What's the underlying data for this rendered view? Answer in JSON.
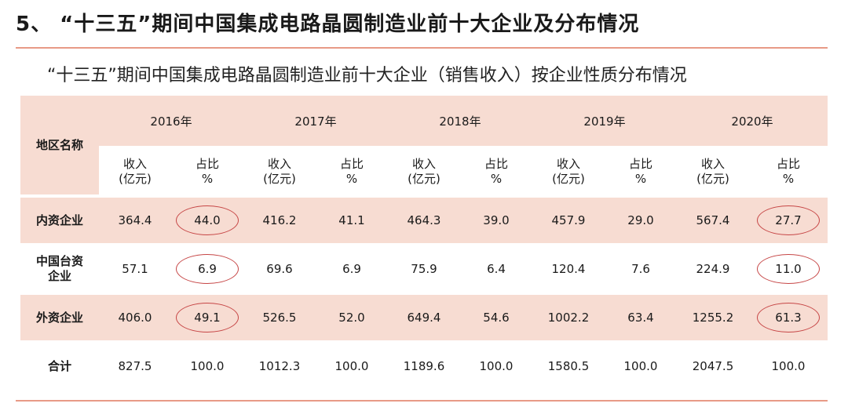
{
  "heading": "5、 “十三五”期间中国集成电路晶圆制造业前十大企业及分布情况",
  "subheading": "“十三五”期间中国集成电路晶圆制造业前十大企业（销售收入）按企业性质分布情况",
  "table": {
    "region_header": "地区名称",
    "years": [
      "2016年",
      "2017年",
      "2018年",
      "2019年",
      "2020年"
    ],
    "sub_headers": {
      "revenue": [
        "收入",
        "(亿元)"
      ],
      "share": [
        "占比",
        "%"
      ]
    },
    "rows": [
      {
        "name": [
          "内资企业"
        ],
        "cells": [
          "364.4",
          "44.0",
          "416.2",
          "41.1",
          "464.3",
          "39.0",
          "457.9",
          "29.0",
          "567.4",
          "27.7"
        ]
      },
      {
        "name": [
          "中国台资",
          "企业"
        ],
        "cells": [
          "57.1",
          "6.9",
          "69.6",
          "6.9",
          "75.9",
          "6.4",
          "120.4",
          "7.6",
          "224.9",
          "11.0"
        ]
      },
      {
        "name": [
          "外资企业"
        ],
        "cells": [
          "406.0",
          "49.1",
          "526.5",
          "52.0",
          "649.4",
          "54.6",
          "1002.2",
          "63.4",
          "1255.2",
          "61.3"
        ]
      },
      {
        "name": [
          "合计"
        ],
        "cells": [
          "827.5",
          "100.0",
          "1012.3",
          "100.0",
          "1189.6",
          "100.0",
          "1580.5",
          "100.0",
          "2047.5",
          "100.0"
        ]
      }
    ],
    "circle_color": "#c64545",
    "header_bg": "#f7dcd2"
  }
}
